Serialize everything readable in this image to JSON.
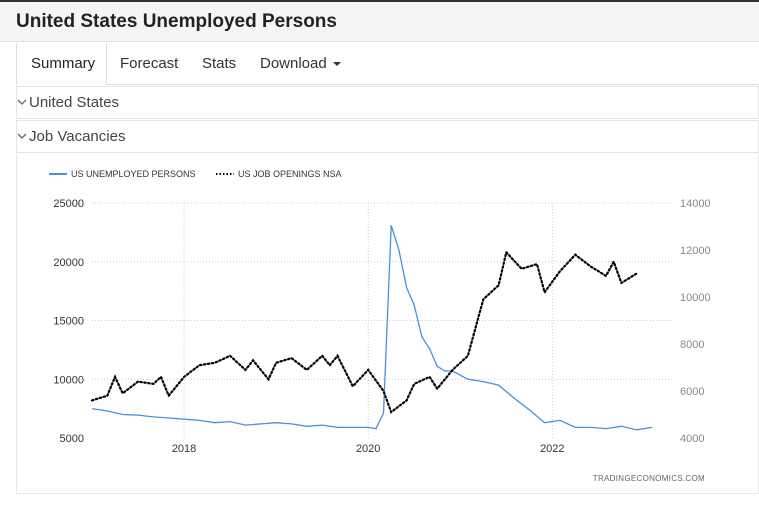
{
  "header": {
    "title": "United States Unemployed Persons"
  },
  "tabs": [
    {
      "label": "Summary",
      "active": true
    },
    {
      "label": "Forecast"
    },
    {
      "label": "Stats"
    },
    {
      "label": "Download"
    }
  ],
  "selectors": {
    "country": {
      "value": "United States"
    },
    "indicator": {
      "value": "Job Vacancies"
    }
  },
  "colors": {
    "series_unemployed": "#4a90d9",
    "series_openings": "#000000",
    "grid": "#cccccc"
  },
  "chart_data": {
    "type": "line",
    "legend_position": "top-left",
    "grid": "dotted",
    "x_ticks": [
      "2018",
      "2020",
      "2022"
    ],
    "y_left": {
      "ticks": [
        5000,
        10000,
        15000,
        20000,
        25000
      ],
      "range": [
        5000,
        25000
      ]
    },
    "y_right": {
      "ticks": [
        4000,
        6000,
        8000,
        10000,
        12000,
        14000
      ],
      "range": [
        4000,
        14000
      ]
    },
    "watermark": "TRADINGECONOMICS.COM",
    "series": [
      {
        "name": "US UNEMPLOYED PERSONS",
        "axis": "left",
        "style": "solid",
        "points": [
          [
            "2017-01",
            7500
          ],
          [
            "2017-03",
            7300
          ],
          [
            "2017-05",
            7000
          ],
          [
            "2017-07",
            6950
          ],
          [
            "2017-09",
            6800
          ],
          [
            "2017-11",
            6700
          ],
          [
            "2018-01",
            6600
          ],
          [
            "2018-03",
            6500
          ],
          [
            "2018-05",
            6300
          ],
          [
            "2018-07",
            6400
          ],
          [
            "2018-09",
            6100
          ],
          [
            "2018-11",
            6200
          ],
          [
            "2019-01",
            6300
          ],
          [
            "2019-03",
            6200
          ],
          [
            "2019-05",
            6000
          ],
          [
            "2019-07",
            6100
          ],
          [
            "2019-09",
            5900
          ],
          [
            "2019-11",
            5900
          ],
          [
            "2020-01",
            5900
          ],
          [
            "2020-02",
            5800
          ],
          [
            "2020-03",
            7100
          ],
          [
            "2020-04",
            23100
          ],
          [
            "2020-05",
            21000
          ],
          [
            "2020-06",
            17800
          ],
          [
            "2020-07",
            16300
          ],
          [
            "2020-08",
            13600
          ],
          [
            "2020-09",
            12600
          ],
          [
            "2020-10",
            11100
          ],
          [
            "2020-11",
            10700
          ],
          [
            "2020-12",
            10700
          ],
          [
            "2021-02",
            10000
          ],
          [
            "2021-04",
            9800
          ],
          [
            "2021-06",
            9500
          ],
          [
            "2021-08",
            8400
          ],
          [
            "2021-10",
            7400
          ],
          [
            "2021-12",
            6300
          ],
          [
            "2022-02",
            6500
          ],
          [
            "2022-04",
            5900
          ],
          [
            "2022-06",
            5900
          ],
          [
            "2022-08",
            5800
          ],
          [
            "2022-10",
            6000
          ],
          [
            "2022-12",
            5700
          ],
          [
            "2023-02",
            5900
          ]
        ]
      },
      {
        "name": "US JOB OPENINGS NSA",
        "axis": "right",
        "style": "dotted",
        "points": [
          [
            "2017-01",
            5600
          ],
          [
            "2017-03",
            5800
          ],
          [
            "2017-04",
            6600
          ],
          [
            "2017-05",
            5900
          ],
          [
            "2017-07",
            6400
          ],
          [
            "2017-09",
            6300
          ],
          [
            "2017-10",
            6600
          ],
          [
            "2017-11",
            5800
          ],
          [
            "2018-01",
            6600
          ],
          [
            "2018-03",
            7100
          ],
          [
            "2018-05",
            7200
          ],
          [
            "2018-07",
            7500
          ],
          [
            "2018-09",
            6900
          ],
          [
            "2018-10",
            7300
          ],
          [
            "2018-12",
            6500
          ],
          [
            "2019-01",
            7200
          ],
          [
            "2019-03",
            7400
          ],
          [
            "2019-05",
            6900
          ],
          [
            "2019-07",
            7500
          ],
          [
            "2019-08",
            7100
          ],
          [
            "2019-09",
            7500
          ],
          [
            "2019-11",
            6200
          ],
          [
            "2020-01",
            6900
          ],
          [
            "2020-03",
            6000
          ],
          [
            "2020-04",
            5100
          ],
          [
            "2020-06",
            5600
          ],
          [
            "2020-07",
            6300
          ],
          [
            "2020-09",
            6600
          ],
          [
            "2020-10",
            6100
          ],
          [
            "2020-12",
            6900
          ],
          [
            "2021-02",
            7500
          ],
          [
            "2021-04",
            9900
          ],
          [
            "2021-06",
            10500
          ],
          [
            "2021-07",
            11900
          ],
          [
            "2021-09",
            11200
          ],
          [
            "2021-11",
            11400
          ],
          [
            "2021-12",
            10200
          ],
          [
            "2022-02",
            11100
          ],
          [
            "2022-04",
            11800
          ],
          [
            "2022-06",
            11300
          ],
          [
            "2022-08",
            10900
          ],
          [
            "2022-09",
            11500
          ],
          [
            "2022-10",
            10600
          ],
          [
            "2022-12",
            11000
          ]
        ]
      }
    ]
  }
}
